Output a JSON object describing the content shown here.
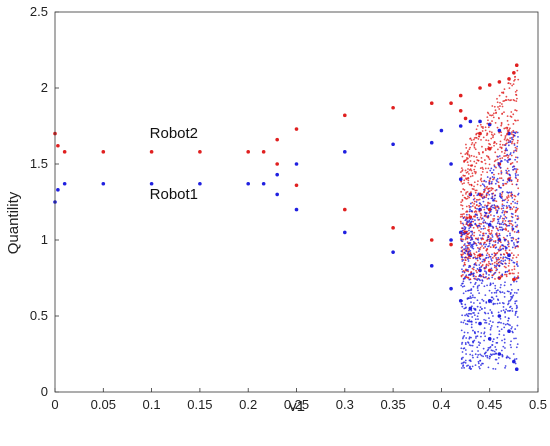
{
  "chart_data": {
    "type": "scatter",
    "title": "",
    "xlabel": "v1",
    "ylabel": "Quantility",
    "xlim": [
      0,
      0.5
    ],
    "ylim": [
      0,
      2.5
    ],
    "xticks": [
      "0",
      "0.05",
      "0.1",
      "0.15",
      "0.2",
      "0.25",
      "0.3",
      "0.35",
      "0.4",
      "0.45",
      "0.5"
    ],
    "yticks": [
      "0",
      "0.5",
      "1",
      "1.5",
      "2",
      "2.5"
    ],
    "grid": false,
    "annotations": [
      {
        "text": "Robot2",
        "x": 0.098,
        "y": 1.67
      },
      {
        "text": "Robot1",
        "x": 0.098,
        "y": 1.27
      }
    ],
    "series": [
      {
        "name": "Robot2",
        "color": "#e02020",
        "points": [
          [
            0.0,
            1.7
          ],
          [
            0.003,
            1.62
          ],
          [
            0.01,
            1.58
          ],
          [
            0.05,
            1.58
          ],
          [
            0.1,
            1.58
          ],
          [
            0.15,
            1.58
          ],
          [
            0.2,
            1.58
          ],
          [
            0.216,
            1.58
          ],
          [
            0.23,
            1.66
          ],
          [
            0.25,
            1.73
          ],
          [
            0.3,
            1.82
          ],
          [
            0.35,
            1.87
          ],
          [
            0.39,
            1.9
          ],
          [
            0.41,
            1.9
          ],
          [
            0.23,
            1.5
          ],
          [
            0.25,
            1.36
          ],
          [
            0.3,
            1.2
          ],
          [
            0.35,
            1.08
          ],
          [
            0.39,
            1.0
          ],
          [
            0.41,
            0.97
          ],
          [
            0.42,
            1.95
          ],
          [
            0.42,
            1.85
          ],
          [
            0.425,
            1.8
          ],
          [
            0.43,
            1.15
          ],
          [
            0.43,
            1.1
          ],
          [
            0.425,
            1.05
          ],
          [
            0.44,
            2.0
          ],
          [
            0.44,
            1.7
          ],
          [
            0.44,
            1.3
          ],
          [
            0.44,
            0.9
          ],
          [
            0.45,
            2.02
          ],
          [
            0.45,
            1.6
          ],
          [
            0.45,
            1.2
          ],
          [
            0.45,
            0.8
          ],
          [
            0.46,
            2.04
          ],
          [
            0.46,
            1.5
          ],
          [
            0.46,
            1.0
          ],
          [
            0.46,
            0.75
          ],
          [
            0.47,
            2.06
          ],
          [
            0.47,
            1.4
          ],
          [
            0.47,
            0.9
          ],
          [
            0.475,
            2.1
          ],
          [
            0.475,
            0.74
          ],
          [
            0.478,
            2.15
          ]
        ]
      },
      {
        "name": "Robot1",
        "color": "#2020e0",
        "points": [
          [
            0.0,
            1.25
          ],
          [
            0.003,
            1.33
          ],
          [
            0.01,
            1.37
          ],
          [
            0.05,
            1.37
          ],
          [
            0.1,
            1.37
          ],
          [
            0.15,
            1.37
          ],
          [
            0.2,
            1.37
          ],
          [
            0.216,
            1.37
          ],
          [
            0.23,
            1.43
          ],
          [
            0.25,
            1.5
          ],
          [
            0.3,
            1.58
          ],
          [
            0.35,
            1.63
          ],
          [
            0.39,
            1.64
          ],
          [
            0.23,
            1.3
          ],
          [
            0.25,
            1.2
          ],
          [
            0.3,
            1.05
          ],
          [
            0.35,
            0.92
          ],
          [
            0.39,
            0.83
          ],
          [
            0.4,
            1.72
          ],
          [
            0.41,
            1.5
          ],
          [
            0.41,
            1.0
          ],
          [
            0.41,
            0.68
          ],
          [
            0.42,
            1.75
          ],
          [
            0.42,
            1.4
          ],
          [
            0.42,
            1.05
          ],
          [
            0.42,
            0.6
          ],
          [
            0.43,
            1.78
          ],
          [
            0.43,
            1.3
          ],
          [
            0.43,
            0.9
          ],
          [
            0.43,
            0.55
          ],
          [
            0.44,
            1.78
          ],
          [
            0.44,
            1.2
          ],
          [
            0.44,
            0.8
          ],
          [
            0.44,
            0.45
          ],
          [
            0.45,
            1.76
          ],
          [
            0.45,
            1.1
          ],
          [
            0.45,
            0.6
          ],
          [
            0.45,
            0.35
          ],
          [
            0.46,
            1.72
          ],
          [
            0.46,
            1.0
          ],
          [
            0.46,
            0.5
          ],
          [
            0.46,
            0.25
          ],
          [
            0.47,
            1.7
          ],
          [
            0.47,
            0.9
          ],
          [
            0.47,
            0.4
          ],
          [
            0.475,
            0.2
          ],
          [
            0.478,
            0.15
          ]
        ]
      }
    ]
  }
}
